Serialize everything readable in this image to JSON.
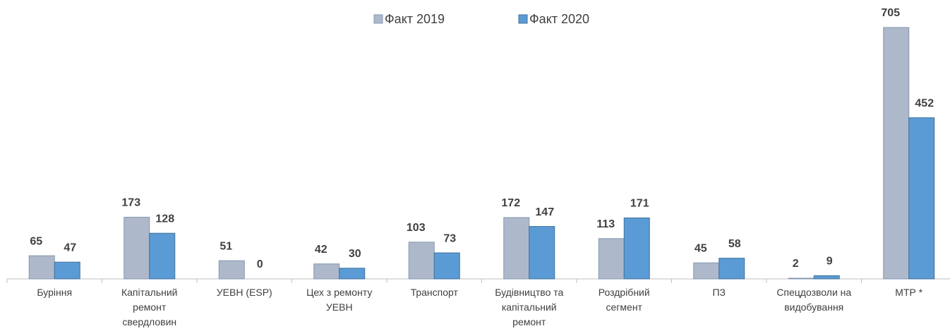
{
  "chart_data": {
    "type": "bar",
    "categories": [
      "Буріння",
      "Капітальний ремонт свердловин",
      "УЕВН (ESP)",
      "Цех з ремонту УЕВН",
      "Транспорт",
      "Будівництво та капітальний ремонт",
      "Роздрібний сегмент",
      "ПЗ",
      "Спецдозволи на видобування",
      "МТР *"
    ],
    "series": [
      {
        "name": "Факт 2019",
        "color": "#adb9ca",
        "values": [
          65,
          173,
          51,
          42,
          103,
          172,
          113,
          45,
          2,
          705
        ]
      },
      {
        "name": "Факт 2020",
        "color": "#5b9bd5",
        "values": [
          47,
          128,
          0,
          30,
          73,
          147,
          171,
          58,
          9,
          452
        ]
      }
    ],
    "ylim": [
      0,
      705
    ],
    "legend": "top"
  }
}
